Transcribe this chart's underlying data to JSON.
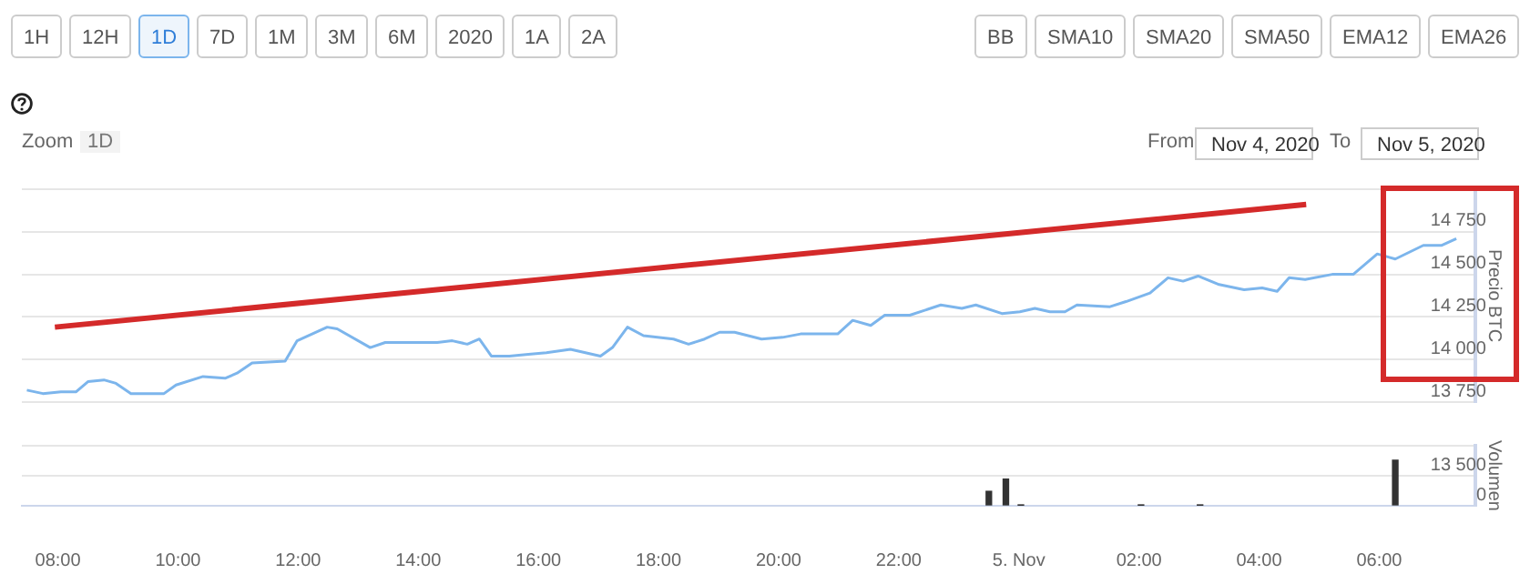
{
  "chart_data": [
    {
      "type": "other",
      "annotations": [
        "1H",
        "12H",
        "1D",
        "7D",
        "1M",
        "3M",
        "6M",
        "2020",
        "1A",
        "2A",
        "BB",
        "SMA10",
        "SMA20",
        "SMA50",
        "EMA12",
        "EMA26",
        "Zoom",
        "1D",
        "From",
        "Nov 4, 2020",
        "To",
        "Nov 5, 2020"
      ]
    },
    {
      "type": "line",
      "ylabel": "Precio BTC",
      "xlim": [
        "2020-11-04T07:24",
        "2020-11-05T07:36"
      ],
      "ylim": [
        13750,
        15000
      ],
      "yticks": [
        {
          "value": 13750,
          "label": "13 750"
        },
        {
          "value": 14000,
          "label": "14 000"
        },
        {
          "value": 14250,
          "label": "14 250"
        },
        {
          "value": 14500,
          "label": "14 500"
        },
        {
          "value": 14750,
          "label": "14 750"
        },
        {
          "value": 15000,
          "label": null
        }
      ],
      "grid": "y",
      "marker": "none",
      "tick_labels": "y",
      "series": [
        {
          "color": "#7cb5ec",
          "x": [
            "2020-11-04T07:29",
            "2020-11-04T07:45",
            "2020-11-04T08:03",
            "2020-11-04T08:18",
            "2020-11-04T08:30",
            "2020-11-04T08:46",
            "2020-11-04T08:58",
            "2020-11-04T09:13",
            "2020-11-04T09:46",
            "2020-11-04T09:58",
            "2020-11-04T10:25",
            "2020-11-04T10:47",
            "2020-11-04T10:59",
            "2020-11-04T11:14",
            "2020-11-04T11:47",
            "2020-11-04T11:59",
            "2020-11-04T12:29",
            "2020-11-04T12:39",
            "2020-11-04T13:12",
            "2020-11-04T13:27",
            "2020-11-04T14:19",
            "2020-11-04T14:34",
            "2020-11-04T14:49",
            "2020-11-04T15:01",
            "2020-11-04T15:13",
            "2020-11-04T15:31",
            "2020-11-04T15:50",
            "2020-11-04T16:08",
            "2020-11-04T16:32",
            "2020-11-04T17:02",
            "2020-11-04T17:14",
            "2020-11-04T17:29",
            "2020-11-04T17:45",
            "2020-11-04T18:15",
            "2020-11-04T18:30",
            "2020-11-04T18:46",
            "2020-11-04T19:01",
            "2020-11-04T19:16",
            "2020-11-04T19:43",
            "2020-11-04T20:04",
            "2020-11-04T20:22",
            "2020-11-04T20:59",
            "2020-11-04T21:14",
            "2020-11-04T21:32",
            "2020-11-04T21:46",
            "2020-11-04T22:11",
            "2020-11-04T22:42",
            "2020-11-04T23:03",
            "2020-11-04T23:17",
            "2020-11-04T23:43",
            "2020-11-05T00:01",
            "2020-11-05T00:16",
            "2020-11-05T00:31",
            "2020-11-05T00:46",
            "2020-11-05T00:58",
            "2020-11-05T01:31",
            "2020-11-05T01:47",
            "2020-11-05T02:11",
            "2020-11-05T02:29",
            "2020-11-05T02:44",
            "2020-11-05T02:59",
            "2020-11-05T03:20",
            "2020-11-05T03:45",
            "2020-11-05T04:03",
            "2020-11-05T04:18",
            "2020-11-05T04:30",
            "2020-11-05T04:46",
            "2020-11-05T05:13",
            "2020-11-05T05:34",
            "2020-11-05T05:58",
            "2020-11-05T06:16",
            "2020-11-05T06:44",
            "2020-11-05T07:02",
            "2020-11-05T07:17"
          ],
          "values": [
            13820,
            13800,
            13810,
            13810,
            13870,
            13880,
            13860,
            13800,
            13800,
            13850,
            13900,
            13890,
            13920,
            13980,
            13990,
            14110,
            14190,
            14180,
            14070,
            14100,
            14100,
            14110,
            14090,
            14120,
            14020,
            14020,
            14030,
            14040,
            14060,
            14020,
            14070,
            14190,
            14140,
            14120,
            14090,
            14120,
            14160,
            14160,
            14120,
            14130,
            14150,
            14150,
            14230,
            14200,
            14260,
            14260,
            14320,
            14300,
            14320,
            14270,
            14280,
            14300,
            14280,
            14280,
            14320,
            14310,
            14340,
            14390,
            14480,
            14460,
            14490,
            14440,
            14410,
            14420,
            14400,
            14480,
            14470,
            14500,
            14500,
            14620,
            14590,
            14670,
            14670,
            14710
          ]
        },
        {
          "type": "line",
          "color": "#d42a2a",
          "x": [
            "2020-11-04T07:57",
            "2020-11-05T04:47"
          ],
          "values": [
            14190,
            14910
          ]
        }
      ]
    },
    {
      "type": "bar",
      "ylabel": "Volumen",
      "xlim": [
        "2020-11-04T07:24",
        "2020-11-05T07:36"
      ],
      "ylim": [
        0,
        27000
      ],
      "xticks": [
        {
          "value": "2020-11-04T08:00",
          "label": "08:00"
        },
        {
          "value": "2020-11-04T10:00",
          "label": "10:00"
        },
        {
          "value": "2020-11-04T12:00",
          "label": "12:00"
        },
        {
          "value": "2020-11-04T14:00",
          "label": "14:00"
        },
        {
          "value": "2020-11-04T16:00",
          "label": "16:00"
        },
        {
          "value": "2020-11-04T18:00",
          "label": "18:00"
        },
        {
          "value": "2020-11-04T20:00",
          "label": "20:00"
        },
        {
          "value": "2020-11-04T22:00",
          "label": "22:00"
        },
        {
          "value": "2020-11-05T00:00",
          "label": "5. Nov"
        },
        {
          "value": "2020-11-05T02:00",
          "label": "02:00"
        },
        {
          "value": "2020-11-05T04:00",
          "label": "04:00"
        },
        {
          "value": "2020-11-05T06:00",
          "label": "06:00"
        }
      ],
      "yticks": [
        0,
        {
          "value": 13500,
          "label": "13 500"
        },
        {
          "value": 27000,
          "label": null
        }
      ],
      "grid": "y",
      "color": "#333333",
      "x": [
        "2020-11-04T23:30",
        "2020-11-04T23:47",
        "2020-11-05T00:02",
        "2020-11-05T02:02",
        "2020-11-05T03:01",
        "2020-11-05T06:16"
      ],
      "values": [
        6500,
        12000,
        200,
        100,
        100,
        20500
      ]
    }
  ]
}
